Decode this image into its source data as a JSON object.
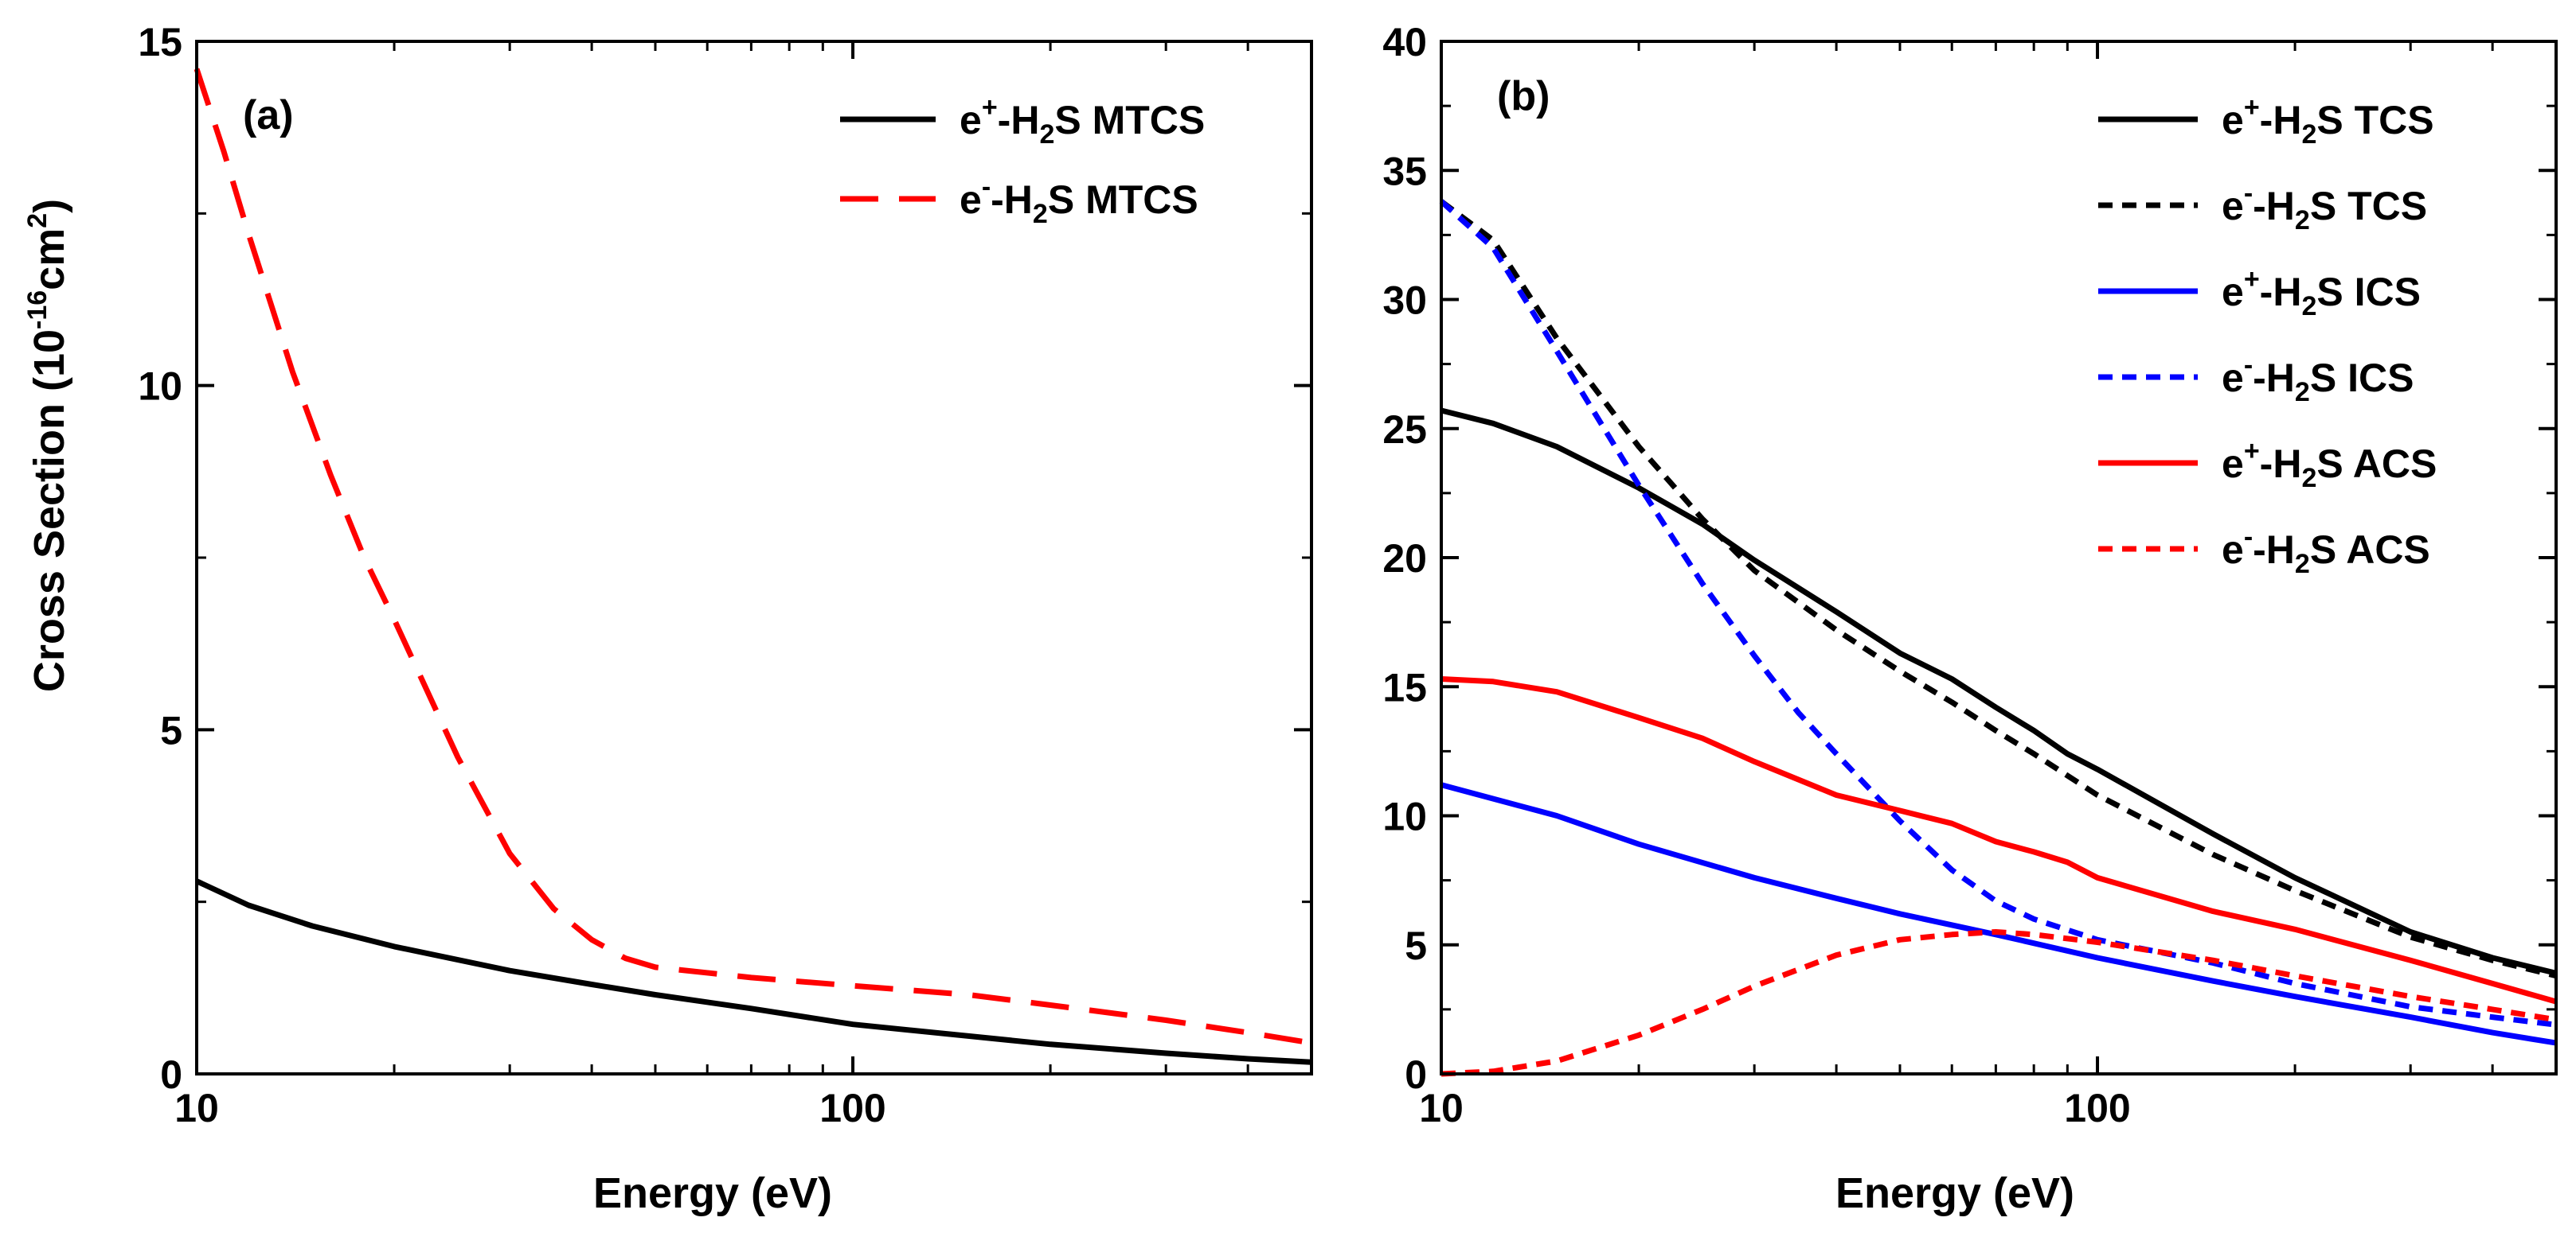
{
  "chart_data": [
    {
      "type": "line",
      "panel_label": "(a)",
      "xlabel": "Energy (eV)",
      "ylabel": "Cross Section (10-16cm2)",
      "ylabel_parts": {
        "main": "Cross Section (10",
        "exp": "-16",
        "unit": "cm",
        "unit_exp": "2",
        "close": ")"
      },
      "x_scale": "log",
      "xlim": [
        10,
        500
      ],
      "ylim": [
        0,
        15
      ],
      "x_ticks": [
        10,
        100
      ],
      "x_tick_labels": [
        "10",
        "100"
      ],
      "y_ticks": [
        0,
        5,
        10,
        15
      ],
      "y_tick_labels": [
        "0",
        "5",
        "10",
        "15"
      ],
      "legend_position": "top-right",
      "series": [
        {
          "name": "e+-H2S MTCS",
          "legend": {
            "p1": "e",
            "sup": "+",
            "p2": "-H",
            "sub": "2",
            "p3": "S MTCS"
          },
          "color": "#000000",
          "dash": "solid",
          "x": [
            10,
            12,
            15,
            20,
            30,
            40,
            50,
            70,
            100,
            150,
            200,
            300,
            400,
            500
          ],
          "y": [
            2.8,
            2.45,
            2.15,
            1.85,
            1.5,
            1.3,
            1.15,
            0.95,
            0.72,
            0.55,
            0.43,
            0.3,
            0.22,
            0.17
          ]
        },
        {
          "name": "e--H2S MTCS",
          "legend": {
            "p1": "e",
            "sup": "-",
            "p2": "-H",
            "sub": "2",
            "p3": "S MTCS"
          },
          "color": "#ff0000",
          "dash": "long-dash",
          "x": [
            10,
            11,
            12,
            14,
            16,
            18,
            20,
            25,
            30,
            35,
            40,
            45,
            50,
            70,
            100,
            150,
            200,
            300,
            400,
            500
          ],
          "y": [
            14.6,
            13.4,
            12.2,
            10.2,
            8.7,
            7.5,
            6.6,
            4.6,
            3.2,
            2.4,
            1.95,
            1.68,
            1.55,
            1.4,
            1.28,
            1.15,
            1.0,
            0.78,
            0.6,
            0.45
          ]
        }
      ]
    },
    {
      "type": "line",
      "panel_label": "(b)",
      "xlabel": "Energy (eV)",
      "x_scale": "log",
      "xlim": [
        10,
        500
      ],
      "ylim": [
        0,
        40
      ],
      "x_ticks": [
        10,
        100
      ],
      "x_tick_labels": [
        "10",
        "100"
      ],
      "y_ticks": [
        0,
        5,
        10,
        15,
        20,
        25,
        30,
        35,
        40
      ],
      "y_tick_labels": [
        "0",
        "5",
        "10",
        "15",
        "20",
        "25",
        "30",
        "35",
        "40"
      ],
      "legend_position": "top-right",
      "series": [
        {
          "name": "e+-H2S TCS",
          "legend": {
            "p1": "e",
            "sup": "+",
            "p2": "-H",
            "sub": "2",
            "p3": "S TCS"
          },
          "color": "#000000",
          "dash": "solid",
          "x": [
            10,
            12,
            15,
            20,
            25,
            30,
            40,
            50,
            60,
            70,
            80,
            90,
            100,
            150,
            200,
            300,
            400,
            500
          ],
          "y": [
            25.7,
            25.2,
            24.3,
            22.7,
            21.3,
            19.9,
            17.9,
            16.3,
            15.3,
            14.2,
            13.3,
            12.4,
            11.8,
            9.3,
            7.6,
            5.5,
            4.5,
            3.9
          ]
        },
        {
          "name": "e--H2S TCS",
          "legend": {
            "p1": "e",
            "sup": "-",
            "p2": "-H",
            "sub": "2",
            "p3": "S TCS"
          },
          "color": "#000000",
          "dash": "short-dash",
          "x": [
            10,
            12,
            15,
            20,
            25,
            30,
            40,
            50,
            60,
            70,
            80,
            100,
            150,
            200,
            300,
            400,
            500
          ],
          "y": [
            33.8,
            32.3,
            28.5,
            24.3,
            21.5,
            19.5,
            17.2,
            15.6,
            14.4,
            13.3,
            12.4,
            10.8,
            8.5,
            7.1,
            5.3,
            4.4,
            3.8
          ]
        },
        {
          "name": "e+-H2S ICS",
          "legend": {
            "p1": "e",
            "sup": "+",
            "p2": "-H",
            "sub": "2",
            "p3": "S ICS"
          },
          "color": "#0000ff",
          "dash": "solid",
          "x": [
            10,
            15,
            20,
            30,
            40,
            50,
            70,
            100,
            150,
            200,
            300,
            400,
            500
          ],
          "y": [
            11.2,
            10.0,
            8.9,
            7.6,
            6.8,
            6.2,
            5.4,
            4.5,
            3.6,
            3.0,
            2.2,
            1.6,
            1.2
          ]
        },
        {
          "name": "e--H2S ICS",
          "legend": {
            "p1": "e",
            "sup": "-",
            "p2": "-H",
            "sub": "2",
            "p3": "S ICS"
          },
          "color": "#0000ff",
          "dash": "short-dash",
          "x": [
            10,
            12,
            15,
            20,
            25,
            30,
            35,
            40,
            50,
            60,
            70,
            80,
            100,
            150,
            200,
            300,
            400,
            500
          ],
          "y": [
            33.8,
            32.0,
            28.0,
            22.8,
            19.0,
            16.2,
            14.0,
            12.4,
            9.8,
            7.9,
            6.7,
            6.0,
            5.2,
            4.3,
            3.5,
            2.6,
            2.2,
            1.9
          ]
        },
        {
          "name": "e+-H2S ACS",
          "legend": {
            "p1": "e",
            "sup": "+",
            "p2": "-H",
            "sub": "2",
            "p3": "S ACS"
          },
          "color": "#ff0000",
          "dash": "solid",
          "x": [
            10,
            12,
            15,
            20,
            25,
            30,
            40,
            50,
            60,
            70,
            80,
            90,
            100,
            150,
            200,
            300,
            400,
            500
          ],
          "y": [
            15.3,
            15.2,
            14.8,
            13.8,
            13.0,
            12.1,
            10.8,
            10.2,
            9.7,
            9.0,
            8.6,
            8.2,
            7.6,
            6.3,
            5.6,
            4.4,
            3.5,
            2.8
          ]
        },
        {
          "name": "e--H2S ACS",
          "legend": {
            "p1": "e",
            "sup": "-",
            "p2": "-H",
            "sub": "2",
            "p3": "S ACS"
          },
          "color": "#ff0000",
          "dash": "short-dash",
          "x": [
            10,
            12,
            15,
            20,
            25,
            30,
            40,
            50,
            60,
            70,
            80,
            100,
            150,
            200,
            300,
            400,
            500
          ],
          "y": [
            0.0,
            0.1,
            0.5,
            1.5,
            2.5,
            3.4,
            4.6,
            5.2,
            5.4,
            5.5,
            5.4,
            5.1,
            4.4,
            3.8,
            3.0,
            2.5,
            2.1
          ]
        }
      ]
    }
  ]
}
